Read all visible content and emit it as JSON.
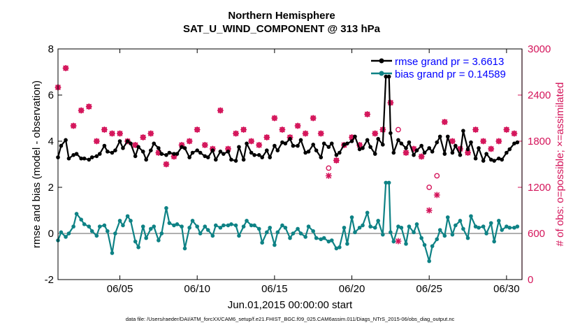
{
  "chart_data": {
    "type": "line",
    "title": "Northern Hemisphere",
    "subtitle": "SAT_U_WIND_COMPONENT @ 313 hPa",
    "xlabel": "Jun.01,2015 00:00:00 start",
    "ylabel": "rmse and bias (model - observation)",
    "ylabel_right": "# of obs: o=possible; ×=assimilated",
    "xlim": [
      1.0,
      31.0
    ],
    "ylim": [
      -2,
      8
    ],
    "ylim_right": [
      0,
      3000
    ],
    "x_ticks": [
      5,
      10,
      15,
      20,
      25,
      30
    ],
    "x_tick_labels": [
      "06/05",
      "06/10",
      "06/15",
      "06/20",
      "06/25",
      "06/30"
    ],
    "y_ticks": [
      -2,
      0,
      2,
      4,
      6,
      8
    ],
    "y_right_ticks": [
      0,
      600,
      1200,
      1800,
      2400,
      3000
    ],
    "zero_line": 0,
    "footer": "data file: /Users/raeder/DAI/ATM_forcXX/CAM6_setup/f.e21.FHIST_BGC.f09_025.CAM6assim.011/Diags_NTrS_2015-06/obs_diag_output.nc",
    "colors": {
      "rmse": "#000000",
      "bias": "#0e8285",
      "obs": "#d4145a",
      "zero": "#b0b0b0"
    },
    "legend": [
      {
        "label": "rmse grand pr = 3.6613",
        "color": "#000000"
      },
      {
        "label": "bias grand pr = 0.14589",
        "color": "#0e8285"
      }
    ],
    "series": [
      {
        "name": "rmse",
        "x": [
          1.0,
          1.2,
          1.5,
          1.7,
          2.0,
          2.2,
          2.5,
          2.7,
          3.0,
          3.2,
          3.5,
          3.7,
          4.0,
          4.2,
          4.5,
          4.7,
          5.0,
          5.2,
          5.5,
          5.7,
          6.0,
          6.2,
          6.5,
          6.7,
          7.0,
          7.2,
          7.5,
          7.7,
          8.0,
          8.2,
          8.5,
          8.7,
          9.0,
          9.2,
          9.5,
          9.7,
          10.0,
          10.2,
          10.5,
          10.7,
          11.0,
          11.2,
          11.5,
          11.7,
          12.0,
          12.2,
          12.5,
          12.7,
          13.0,
          13.2,
          13.5,
          13.7,
          14.0,
          14.2,
          14.5,
          14.7,
          15.0,
          15.2,
          15.5,
          15.7,
          16.0,
          16.2,
          16.5,
          16.7,
          17.0,
          17.2,
          17.5,
          17.7,
          18.0,
          18.2,
          18.5,
          18.7,
          19.0,
          19.2,
          19.5,
          19.7,
          20.0,
          20.2,
          20.5,
          20.7,
          21.0,
          21.2,
          21.5,
          21.7,
          22.0,
          22.2,
          22.4,
          22.5,
          22.7,
          23.0,
          23.2,
          23.5,
          23.7,
          24.0,
          24.2,
          24.5,
          24.7,
          25.0,
          25.2,
          25.5,
          25.7,
          26.0,
          26.2,
          26.5,
          26.7,
          27.0,
          27.2,
          27.5,
          27.7,
          28.0,
          28.2,
          28.5,
          28.7,
          29.0,
          29.2,
          29.5,
          29.7,
          30.0,
          30.2,
          30.5,
          30.7
        ],
        "values": [
          3.3,
          3.8,
          4.05,
          3.25,
          3.4,
          3.45,
          3.25,
          3.25,
          3.2,
          3.3,
          3.35,
          3.45,
          3.8,
          3.55,
          3.5,
          3.6,
          4.0,
          3.7,
          4.0,
          3.9,
          3.35,
          3.75,
          3.55,
          3.2,
          3.6,
          3.9,
          3.7,
          3.45,
          3.4,
          3.5,
          3.45,
          3.45,
          3.75,
          3.7,
          3.3,
          3.5,
          3.6,
          3.5,
          3.35,
          3.3,
          3.6,
          3.2,
          3.55,
          3.45,
          3.55,
          3.2,
          3.15,
          3.75,
          3.2,
          3.9,
          3.5,
          3.4,
          3.4,
          3.3,
          3.6,
          3.3,
          3.8,
          3.6,
          3.95,
          3.9,
          4.1,
          3.8,
          3.8,
          4.05,
          3.5,
          3.55,
          3.85,
          3.6,
          3.3,
          3.9,
          3.75,
          3.9,
          3.4,
          3.5,
          3.85,
          3.9,
          4.0,
          4.2,
          3.65,
          3.7,
          4.05,
          3.75,
          3.45,
          4.1,
          3.85,
          6.8,
          6.8,
          4.35,
          3.5,
          4.05,
          3.9,
          3.7,
          3.95,
          3.4,
          3.6,
          3.8,
          3.5,
          3.7,
          3.55,
          3.95,
          4.2,
          3.45,
          4.2,
          3.5,
          3.8,
          3.4,
          4.45,
          3.65,
          3.95,
          3.25,
          3.7,
          3.15,
          3.45,
          3.2,
          3.15,
          3.25,
          3.2,
          3.5,
          3.65,
          3.9,
          3.95
        ]
      },
      {
        "name": "bias",
        "x": [
          1.0,
          1.2,
          1.5,
          1.7,
          2.0,
          2.2,
          2.5,
          2.7,
          3.0,
          3.2,
          3.5,
          3.7,
          4.0,
          4.2,
          4.5,
          4.7,
          5.0,
          5.2,
          5.5,
          5.7,
          6.0,
          6.2,
          6.5,
          6.7,
          7.0,
          7.2,
          7.5,
          7.7,
          8.0,
          8.2,
          8.5,
          8.7,
          9.0,
          9.2,
          9.5,
          9.7,
          10.0,
          10.2,
          10.5,
          10.7,
          11.0,
          11.2,
          11.5,
          11.7,
          12.0,
          12.2,
          12.5,
          12.7,
          13.0,
          13.2,
          13.5,
          13.7,
          14.0,
          14.2,
          14.5,
          14.7,
          15.0,
          15.2,
          15.5,
          15.7,
          16.0,
          16.2,
          16.5,
          16.7,
          17.0,
          17.2,
          17.5,
          17.7,
          18.0,
          18.2,
          18.5,
          18.7,
          19.0,
          19.2,
          19.5,
          19.7,
          20.0,
          20.2,
          20.5,
          20.7,
          21.0,
          21.2,
          21.5,
          21.7,
          22.0,
          22.2,
          22.4,
          22.5,
          22.7,
          23.0,
          23.2,
          23.5,
          23.7,
          24.0,
          24.2,
          24.5,
          24.7,
          25.0,
          25.2,
          25.5,
          25.7,
          26.0,
          26.2,
          26.5,
          26.7,
          27.0,
          27.2,
          27.5,
          27.7,
          28.0,
          28.2,
          28.5,
          28.7,
          29.0,
          29.2,
          29.5,
          29.7,
          30.0,
          30.2,
          30.5,
          30.7
        ],
        "values": [
          -0.3,
          0.05,
          -0.15,
          0.0,
          0.3,
          0.85,
          0.6,
          0.4,
          0.3,
          0.1,
          -0.1,
          0.3,
          0.35,
          0.1,
          -0.85,
          0.0,
          0.55,
          0.35,
          0.75,
          0.55,
          -0.35,
          -0.6,
          0.3,
          -0.2,
          0.2,
          0.3,
          -0.3,
          0.0,
          1.1,
          0.45,
          0.35,
          0.4,
          0.3,
          -0.65,
          0.25,
          0.55,
          0.3,
          0.0,
          0.3,
          0.15,
          -0.1,
          0.35,
          0.25,
          0.35,
          0.35,
          0.4,
          0.35,
          -0.1,
          0.3,
          0.55,
          0.35,
          0.35,
          0.2,
          -0.4,
          0.05,
          0.25,
          -0.5,
          0.05,
          0.35,
          0.25,
          -0.2,
          0.0,
          0.2,
          0.0,
          -0.15,
          0.3,
          0.1,
          -0.2,
          -0.25,
          -0.2,
          -0.35,
          -0.3,
          -0.65,
          -0.6,
          0.25,
          -0.45,
          0.7,
          0.05,
          0.25,
          0.35,
          0.9,
          0.3,
          0.25,
          0.55,
          -0.05,
          2.2,
          2.2,
          0.05,
          -0.35,
          0.3,
          0.25,
          -0.45,
          0.3,
          0.05,
          0.4,
          -0.2,
          -0.5,
          -1.2,
          -0.55,
          -0.25,
          0.15,
          -0.1,
          0.7,
          -0.05,
          0.35,
          0.55,
          0.2,
          -0.2,
          0.75,
          0.3,
          0.25,
          0.3,
          0.0,
          0.45,
          -0.35,
          0.55,
          0.15,
          0.3,
          0.25,
          0.25,
          0.3
        ]
      },
      {
        "name": "obs_possible",
        "x": [
          1.0,
          1.5,
          2.0,
          2.5,
          3.0,
          3.5,
          4.0,
          4.5,
          5.0,
          5.5,
          6.0,
          6.5,
          7.0,
          7.5,
          8.0,
          8.5,
          9.0,
          9.5,
          10.0,
          10.5,
          11.0,
          11.5,
          12.0,
          12.5,
          13.0,
          13.5,
          14.0,
          14.5,
          15.0,
          15.5,
          16.0,
          16.5,
          17.0,
          17.5,
          18.0,
          18.5,
          19.0,
          19.5,
          20.0,
          20.5,
          21.0,
          21.5,
          22.0,
          22.5,
          23.0,
          23.5,
          24.0,
          24.5,
          25.0,
          25.5,
          26.0,
          26.5,
          27.0,
          27.5,
          28.0,
          28.5,
          29.0,
          29.5,
          30.0,
          30.5
        ],
        "values": [
          2500,
          2750,
          2000,
          2200,
          2250,
          1800,
          1950,
          1900,
          1900,
          1800,
          1750,
          1850,
          1900,
          1650,
          1500,
          1600,
          1750,
          1800,
          1950,
          1750,
          1700,
          2200,
          1700,
          1900,
          1950,
          1800,
          1750,
          1850,
          2100,
          1950,
          1850,
          2000,
          1900,
          2100,
          1900,
          1450,
          1550,
          1750,
          1850,
          1750,
          2150,
          1900,
          1950,
          2300,
          1950,
          1650,
          1700,
          1600,
          1200,
          1350,
          2050,
          1800,
          1700,
          1650,
          1950,
          1800,
          1700,
          1800,
          1950,
          1900
        ]
      },
      {
        "name": "obs_assimilated",
        "x": [
          1.0,
          1.5,
          2.0,
          2.5,
          3.0,
          3.5,
          4.0,
          4.5,
          5.0,
          5.5,
          6.0,
          6.5,
          7.0,
          7.5,
          8.0,
          8.5,
          9.0,
          9.5,
          10.0,
          10.5,
          11.0,
          11.5,
          12.0,
          12.5,
          13.0,
          13.5,
          14.0,
          14.5,
          15.0,
          15.5,
          16.0,
          16.5,
          17.0,
          17.5,
          18.0,
          18.5,
          19.0,
          19.5,
          20.0,
          20.5,
          21.0,
          21.5,
          22.0,
          22.5,
          23.0,
          23.5,
          24.0,
          24.5,
          25.0,
          25.5,
          26.0,
          26.5,
          27.0,
          27.5,
          28.0,
          28.5,
          29.0,
          29.5,
          30.0,
          30.5
        ],
        "values": [
          2500,
          2750,
          2000,
          2200,
          2250,
          1800,
          1950,
          1900,
          1900,
          1800,
          1750,
          1850,
          1900,
          1650,
          1500,
          1600,
          1750,
          1800,
          1950,
          1750,
          1700,
          2200,
          1700,
          1900,
          1950,
          1800,
          1750,
          1850,
          2100,
          1950,
          1850,
          2000,
          1900,
          2100,
          1900,
          1350,
          1550,
          1750,
          1850,
          1750,
          2150,
          1900,
          1950,
          2300,
          500,
          1650,
          1700,
          1600,
          900,
          1100,
          2050,
          1800,
          1700,
          1650,
          1950,
          1800,
          1700,
          1800,
          1950,
          1900
        ]
      }
    ]
  }
}
